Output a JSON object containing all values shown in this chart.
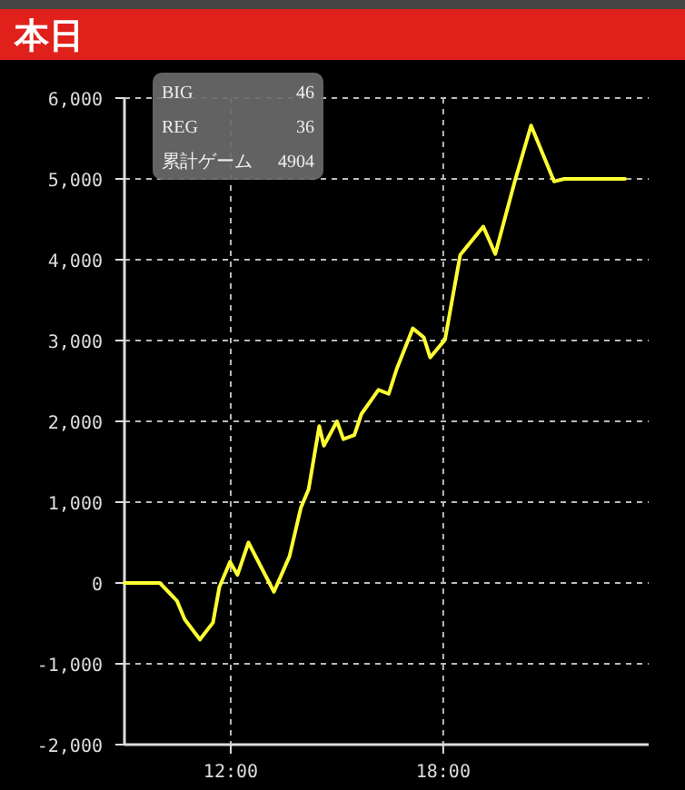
{
  "chart_data": {
    "type": "line",
    "title": "本日",
    "annotations": [
      "BIG",
      "46",
      "REG",
      "36",
      "累計ゲーム",
      "4904"
    ],
    "xlim": [
      9,
      23.8
    ],
    "ylim": [
      -2000,
      6000
    ],
    "xticks": [
      {
        "value": 12,
        "label": "12:00"
      },
      {
        "value": 18,
        "label": "18:00"
      }
    ],
    "yticks": [
      {
        "value": -2000,
        "label": "-2,000"
      },
      {
        "value": -1000,
        "label": "-1,000"
      },
      0,
      {
        "value": 1000,
        "label": "1,000"
      },
      {
        "value": 2000,
        "label": "2,000"
      },
      {
        "value": 3000,
        "label": "3,000"
      },
      {
        "value": 4000,
        "label": "4,000"
      },
      {
        "value": 5000,
        "label": "5,000"
      },
      {
        "value": 6000,
        "label": "6,000"
      }
    ],
    "grid": true,
    "line_style": "solid",
    "series": [
      {
        "color": "#ffff33",
        "x": [
          9.0,
          10.0,
          10.48,
          10.7,
          11.13,
          11.5,
          11.68,
          11.98,
          12.19,
          12.5,
          13.22,
          13.66,
          13.98,
          14.2,
          14.5,
          14.63,
          15.0,
          15.18,
          15.49,
          15.69,
          16.17,
          16.46,
          16.68,
          17.14,
          17.45,
          17.63,
          18.05,
          18.48,
          19.13,
          19.47,
          20.02,
          20.48,
          21.13,
          21.42,
          23.13
        ],
        "values": [
          0,
          0,
          -220,
          -450,
          -700,
          -490,
          -50,
          260,
          100,
          500,
          -110,
          330,
          930,
          1160,
          1940,
          1700,
          2000,
          1780,
          1830,
          2090,
          2390,
          2340,
          2640,
          3150,
          3040,
          2790,
          3010,
          4060,
          4410,
          4070,
          4970,
          5660,
          4970,
          5000,
          5000
        ]
      }
    ]
  }
}
